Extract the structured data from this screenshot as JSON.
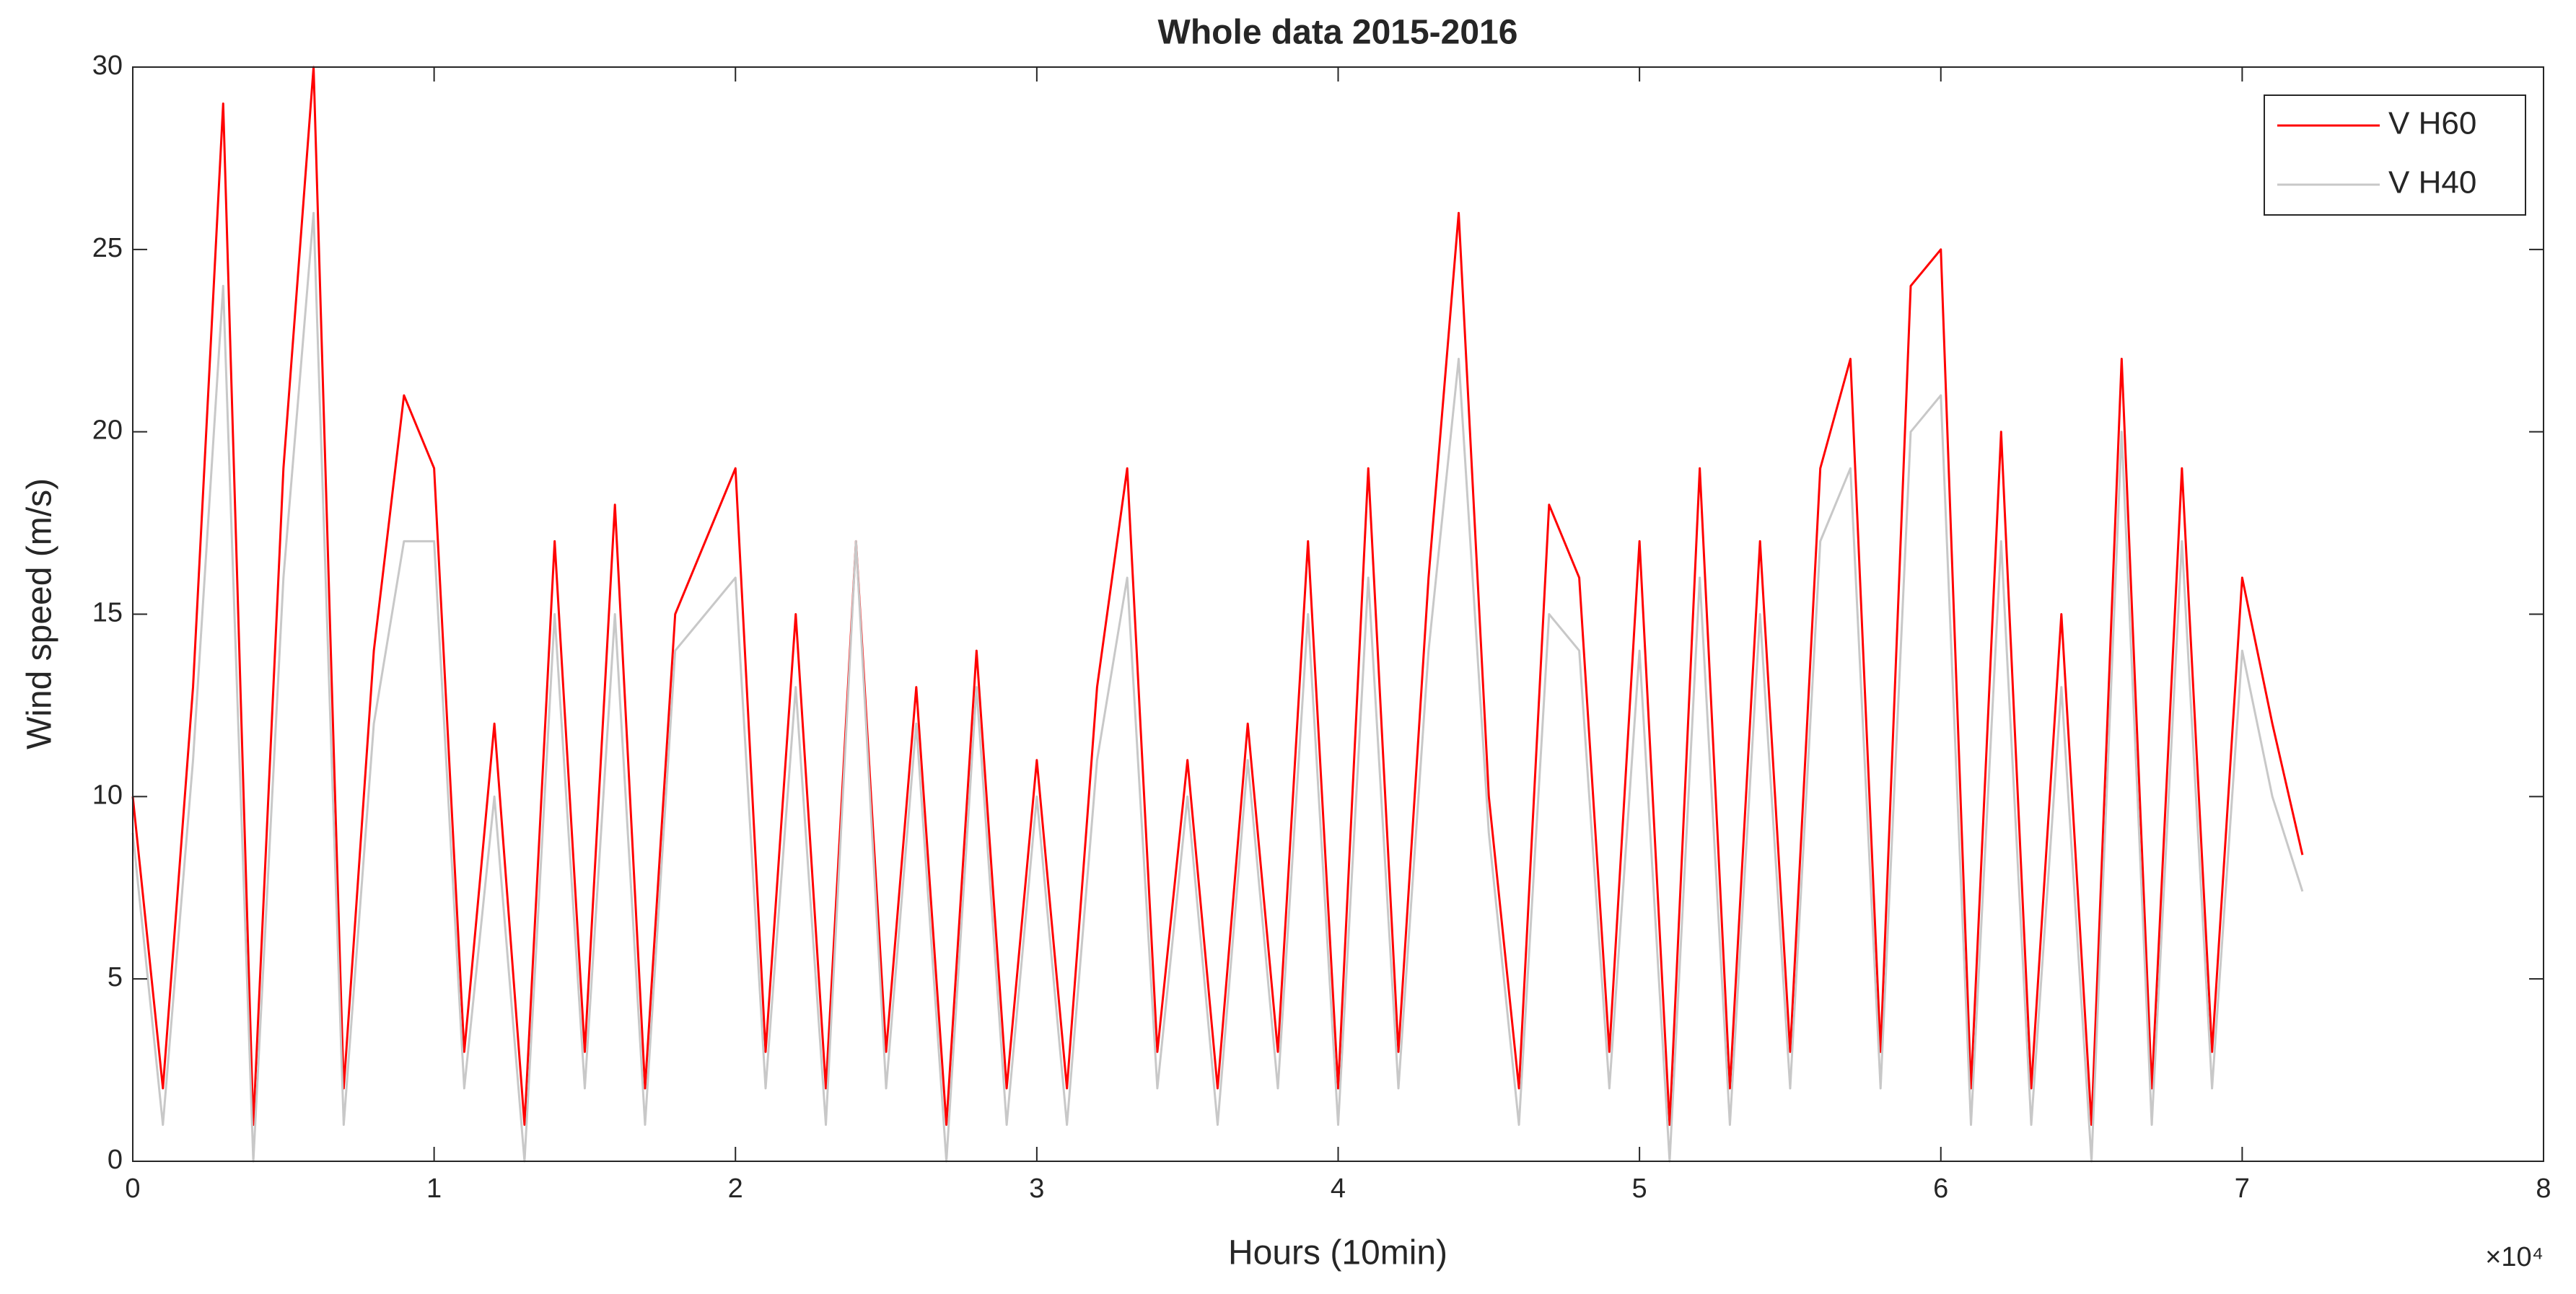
{
  "chart_data": {
    "type": "line",
    "title": "Whole data 2015-2016",
    "xlabel": "Hours (10min)",
    "ylabel": "Wind speed (m/s)",
    "x_multiplier": "×10⁴",
    "x": [
      0,
      1000,
      2000,
      3000,
      4000,
      5000,
      6000,
      7000,
      8000,
      9000,
      10000,
      11000,
      12000,
      13000,
      14000,
      15000,
      16000,
      17000,
      18000,
      19000,
      20000,
      21000,
      22000,
      23000,
      24000,
      25000,
      26000,
      27000,
      28000,
      29000,
      30000,
      31000,
      32000,
      33000,
      34000,
      35000,
      36000,
      37000,
      38000,
      39000,
      40000,
      41000,
      42000,
      43000,
      44000,
      45000,
      46000,
      47000,
      48000,
      49000,
      50000,
      51000,
      52000,
      53000,
      54000,
      55000,
      56000,
      57000,
      58000,
      59000,
      60000,
      61000,
      62000,
      63000,
      64000,
      65000,
      66000,
      67000,
      68000,
      69000,
      70000,
      71000,
      72000
    ],
    "series": [
      {
        "name": "V H60",
        "color": "#ff0000",
        "values": [
          10,
          2,
          13,
          29,
          1,
          19,
          30,
          2,
          14,
          21,
          19,
          3,
          12,
          1,
          17,
          3,
          18,
          2,
          15,
          17,
          19,
          3,
          15,
          2,
          17,
          3,
          13,
          1,
          14,
          2,
          11,
          2,
          13,
          19,
          3,
          11,
          2,
          12,
          3,
          17,
          2,
          19,
          3,
          16,
          26,
          10,
          2,
          18,
          16,
          3,
          17,
          1,
          19,
          2,
          17,
          3,
          19,
          22,
          3,
          24,
          25,
          2,
          20,
          2,
          15,
          1,
          22,
          2,
          19,
          3,
          16,
          12,
          8.4
        ]
      },
      {
        "name": "V H40",
        "color": "#c8c8c8",
        "values": [
          9,
          1,
          11,
          24,
          0,
          16,
          26,
          1,
          12,
          17,
          17,
          2,
          10,
          0,
          15,
          2,
          15,
          1,
          14,
          15,
          16,
          2,
          13,
          1,
          17,
          2,
          12,
          0,
          13,
          1,
          10,
          1,
          11,
          16,
          2,
          10,
          1,
          11,
          2,
          15,
          1,
          16,
          2,
          14,
          22,
          9,
          1,
          15,
          14,
          2,
          14,
          0,
          16,
          1,
          15,
          2,
          17,
          19,
          2,
          20,
          21,
          1,
          17,
          1,
          13,
          0,
          20,
          1,
          17,
          2,
          14,
          10,
          7.4
        ]
      }
    ],
    "xlim": [
      0,
      80000
    ],
    "xticks": [
      {
        "value": 0,
        "label": "0"
      },
      {
        "value": 10000,
        "label": "1"
      },
      {
        "value": 20000,
        "label": "2"
      },
      {
        "value": 30000,
        "label": "3"
      },
      {
        "value": 40000,
        "label": "4"
      },
      {
        "value": 50000,
        "label": "5"
      },
      {
        "value": 60000,
        "label": "6"
      },
      {
        "value": 70000,
        "label": "7"
      },
      {
        "value": 80000,
        "label": "8"
      }
    ],
    "ylim": [
      0,
      30
    ],
    "yticks": [
      0,
      5,
      10,
      15,
      20,
      25,
      30
    ],
    "grid": false,
    "legend": "upper right"
  }
}
